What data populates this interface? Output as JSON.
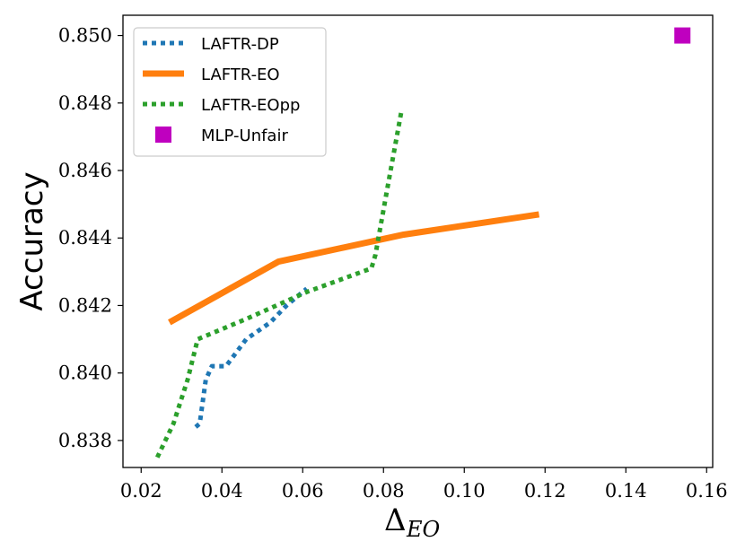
{
  "chart_data": {
    "type": "line",
    "xlabel": "Δ",
    "xlabel_sub": "EO",
    "ylabel": "Accuracy",
    "xlim": [
      0.0155,
      0.1615
    ],
    "ylim": [
      0.8372,
      0.8506
    ],
    "xticks": [
      0.02,
      0.04,
      0.06,
      0.08,
      0.1,
      0.12,
      0.14,
      0.16
    ],
    "xtick_labels": [
      "0.02",
      "0.04",
      "0.06",
      "0.08",
      "0.10",
      "0.12",
      "0.14",
      "0.16"
    ],
    "yticks": [
      0.838,
      0.84,
      0.842,
      0.844,
      0.846,
      0.848,
      0.85
    ],
    "ytick_labels": [
      "0.838",
      "0.840",
      "0.842",
      "0.844",
      "0.846",
      "0.848",
      "0.850"
    ],
    "legend_position": "upper-left",
    "series": [
      {
        "name": "LAFTR-DP",
        "color": "#1f77b4",
        "style": "dotted",
        "points": [
          [
            0.0335,
            0.8384
          ],
          [
            0.0345,
            0.8385
          ],
          [
            0.036,
            0.8398
          ],
          [
            0.0375,
            0.8402
          ],
          [
            0.041,
            0.8402
          ],
          [
            0.046,
            0.841
          ],
          [
            0.052,
            0.8415
          ],
          [
            0.056,
            0.842
          ],
          [
            0.061,
            0.8425
          ]
        ]
      },
      {
        "name": "LAFTR-EO",
        "color": "#ff7f0e",
        "style": "solid",
        "points": [
          [
            0.027,
            0.8415
          ],
          [
            0.054,
            0.8433
          ],
          [
            0.085,
            0.8441
          ],
          [
            0.1185,
            0.8447
          ]
        ]
      },
      {
        "name": "LAFTR-EOpp",
        "color": "#2ca02c",
        "style": "dotted",
        "points": [
          [
            0.024,
            0.8375
          ],
          [
            0.028,
            0.8385
          ],
          [
            0.0315,
            0.8398
          ],
          [
            0.034,
            0.841
          ],
          [
            0.046,
            0.8416
          ],
          [
            0.061,
            0.8424
          ],
          [
            0.077,
            0.8431
          ],
          [
            0.078,
            0.8435
          ],
          [
            0.081,
            0.8455
          ],
          [
            0.0845,
            0.8478
          ]
        ]
      },
      {
        "name": "MLP-Unfair",
        "color": "#bf00bf",
        "style": "marker-square",
        "points": [
          [
            0.154,
            0.85
          ]
        ]
      }
    ]
  }
}
